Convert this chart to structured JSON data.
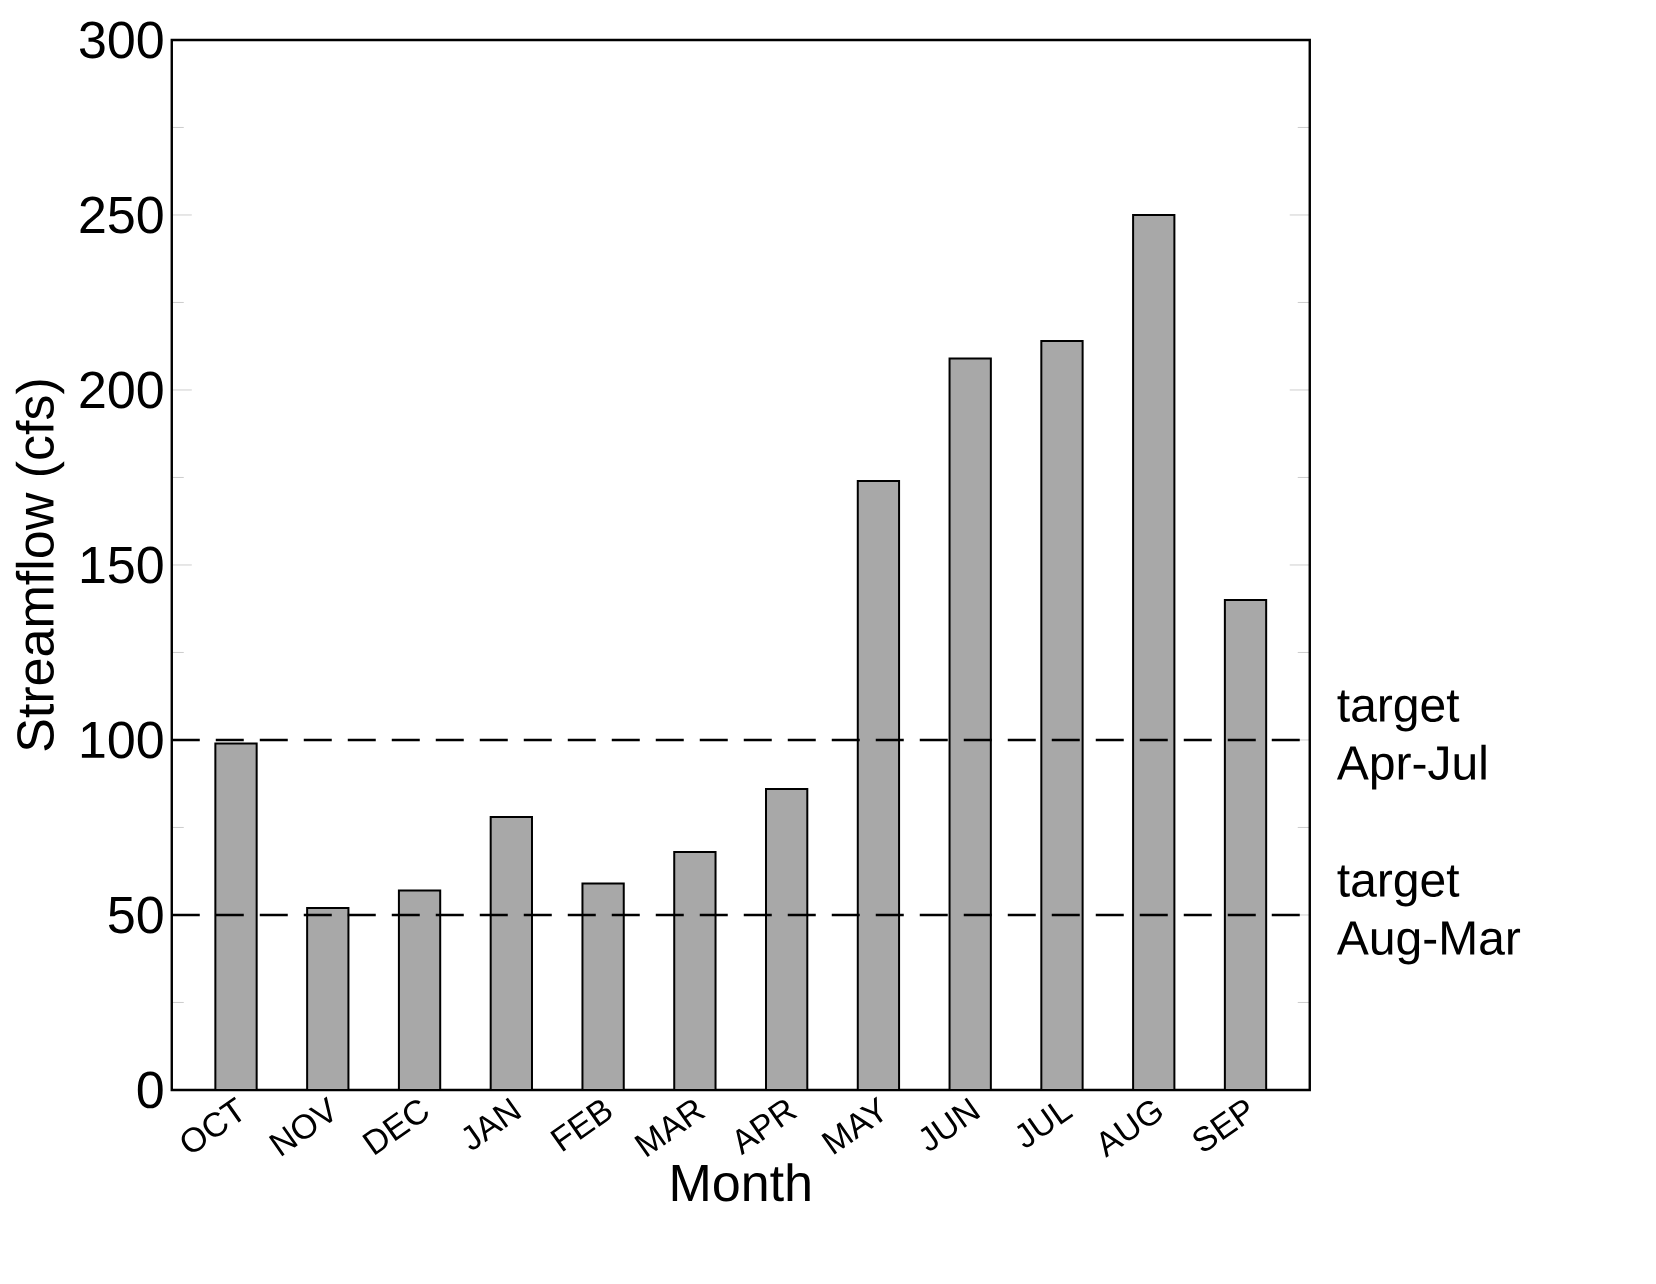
{
  "chart_data": {
    "type": "bar",
    "xlabel": "Month",
    "ylabel": "Streamflow (cfs)",
    "categories": [
      "OCT",
      "NOV",
      "DEC",
      "JAN",
      "FEB",
      "MAR",
      "APR",
      "MAY",
      "JUN",
      "JUL",
      "AUG",
      "SEP"
    ],
    "values": [
      99,
      52,
      57,
      78,
      59,
      68,
      86,
      174,
      209,
      214,
      250,
      140
    ],
    "color": "#a8a8a8",
    "ylim": [
      0,
      300
    ],
    "yticks": [
      0,
      50,
      100,
      150,
      200,
      250,
      300
    ],
    "ref_lines": [
      {
        "axis": "y",
        "value": 100,
        "label": "target Apr-Jul",
        "line_style": "dashed"
      },
      {
        "axis": "y",
        "value": 50,
        "label": "target Aug-Mar",
        "line_style": "dashed"
      }
    ],
    "grid": false
  }
}
